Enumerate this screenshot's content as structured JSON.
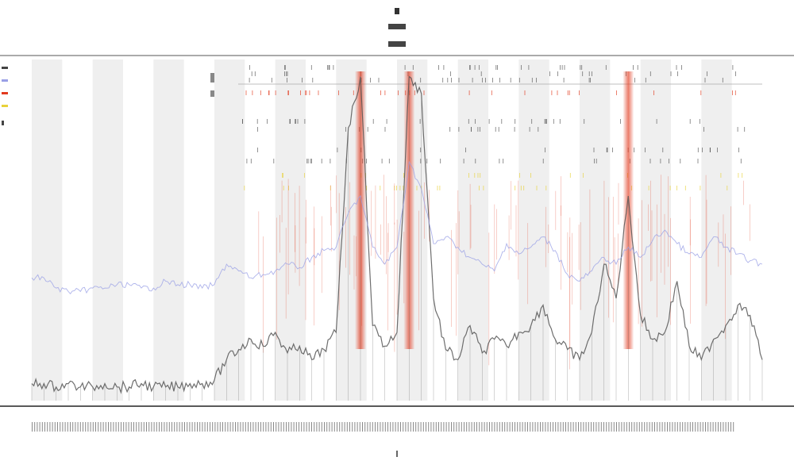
{
  "chart_data": {
    "type": "line",
    "title": "",
    "subtitle": "",
    "xlabel": "",
    "ylabel": "",
    "legend_position": "top-left",
    "grid": false,
    "colors": {
      "latency_series": "#555555",
      "secondary_series": "#9aa0e6",
      "hot_band": "#e23a1e",
      "warm_band": "#e8d23a",
      "shade_band": "#efefef",
      "axis": "#222222"
    },
    "series": [
      {
        "values": [
          0.05,
          0.05,
          0.04,
          0.05,
          0.04,
          0.04,
          0.05,
          0.04,
          0.04,
          0.05,
          0.04,
          0.04,
          0.04,
          0.05,
          0.05,
          0.06,
          0.12,
          0.15,
          0.18,
          0.16,
          0.2,
          0.14,
          0.16,
          0.12,
          0.15,
          0.2,
          0.8,
          0.95,
          0.22,
          0.16,
          0.2,
          0.95,
          0.9,
          0.3,
          0.15,
          0.12,
          0.22,
          0.14,
          0.18,
          0.16,
          0.2,
          0.22,
          0.28,
          0.18,
          0.15,
          0.12,
          0.2,
          0.4,
          0.3,
          0.6,
          0.25,
          0.18,
          0.2,
          0.35,
          0.16,
          0.12,
          0.18,
          0.22,
          0.28,
          0.25,
          0.12
        ]
      },
      {
        "values": [
          0.36,
          0.36,
          0.33,
          0.32,
          0.32,
          0.33,
          0.33,
          0.34,
          0.34,
          0.33,
          0.33,
          0.35,
          0.34,
          0.34,
          0.33,
          0.34,
          0.4,
          0.38,
          0.36,
          0.37,
          0.38,
          0.4,
          0.39,
          0.42,
          0.44,
          0.45,
          0.55,
          0.6,
          0.45,
          0.4,
          0.45,
          0.7,
          0.62,
          0.46,
          0.48,
          0.45,
          0.42,
          0.4,
          0.38,
          0.46,
          0.43,
          0.45,
          0.48,
          0.44,
          0.37,
          0.35,
          0.38,
          0.42,
          0.4,
          0.45,
          0.42,
          0.47,
          0.5,
          0.46,
          0.43,
          0.42,
          0.48,
          0.45,
          0.43,
          0.41,
          0.4
        ]
      }
    ],
    "hot_spikes": [
      27,
      31,
      49
    ],
    "shaded_bands": [
      {
        "start": 0,
        "end": 2.5
      },
      {
        "start": 5,
        "end": 7.5
      },
      {
        "start": 10,
        "end": 12.5
      },
      {
        "start": 15,
        "end": 17.5
      },
      {
        "start": 20,
        "end": 22.5
      },
      {
        "start": 25,
        "end": 27.5
      },
      {
        "start": 30,
        "end": 32.5
      },
      {
        "start": 35,
        "end": 37.5
      },
      {
        "start": 40,
        "end": 42.5
      },
      {
        "start": 45,
        "end": 47.5
      },
      {
        "start": 50,
        "end": 52.5
      },
      {
        "start": 55,
        "end": 57.5
      }
    ],
    "xlim": [
      0,
      60
    ],
    "ylim": [
      0,
      1
    ]
  }
}
